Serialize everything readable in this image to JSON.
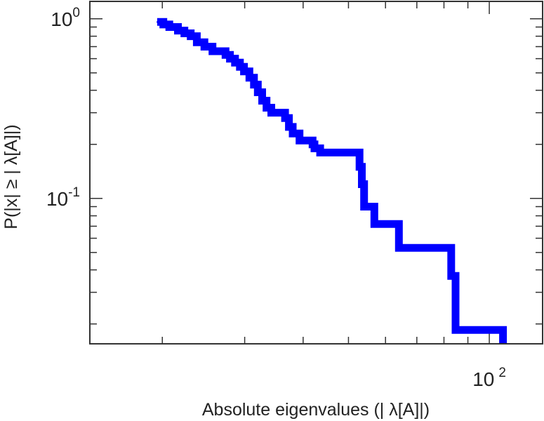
{
  "chart_data": {
    "type": "line",
    "style": "step",
    "xscale": "log",
    "yscale": "log",
    "xlim": [
      14,
      130
    ],
    "ylim": [
      0.0155,
      1.25
    ],
    "grid": false,
    "legend": "none",
    "xlabel": "Absolute eigenvalues (|     λ[A]|)",
    "ylabel": "P(|x|  ≥ | λ[A]|)",
    "x_ticks": [
      {
        "value": 100,
        "base": "10",
        "exp": "2"
      }
    ],
    "y_ticks": [
      {
        "value": 1,
        "base": "10",
        "exp": "0"
      },
      {
        "value": 0.1,
        "base": "10",
        "exp": "-1"
      }
    ],
    "series": [
      {
        "color": "#0000ff",
        "x": [
          19.5,
          20.1,
          20.7,
          21.6,
          22.3,
          23.0,
          23.7,
          24.6,
          25.6,
          27.3,
          27.9,
          28.6,
          29.3,
          29.9,
          30.7,
          31.4,
          32.0,
          32.7,
          33.4,
          34.2,
          36.6,
          37.3,
          38.0,
          39.3,
          41.9,
          42.3,
          43.5,
          52.0,
          52.8,
          53.4,
          54.0,
          56.8,
          64.1,
          82.9,
          84.7,
          107
        ],
        "y": [
          0.96,
          0.93,
          0.9,
          0.86,
          0.83,
          0.8,
          0.74,
          0.7,
          0.66,
          0.63,
          0.6,
          0.57,
          0.54,
          0.51,
          0.47,
          0.43,
          0.39,
          0.35,
          0.32,
          0.3,
          0.28,
          0.25,
          0.23,
          0.21,
          0.2,
          0.19,
          0.18,
          0.18,
          0.15,
          0.12,
          0.09,
          0.072,
          0.053,
          0.037,
          0.0185,
          0.0155
        ]
      }
    ]
  }
}
